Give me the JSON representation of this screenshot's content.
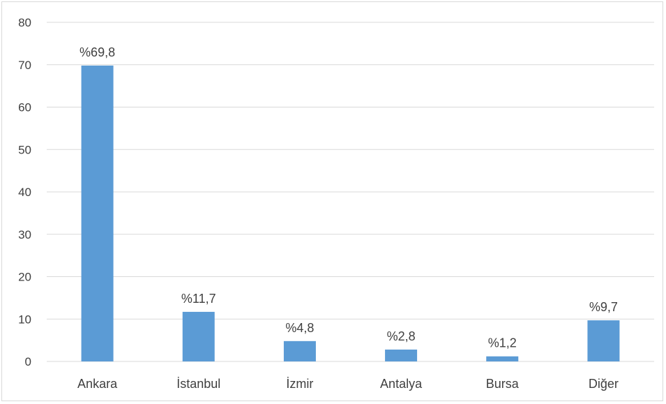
{
  "chart_data": {
    "type": "bar",
    "categories": [
      "Ankara",
      "İstanbul",
      "İzmir",
      "Antalya",
      "Bursa",
      "Diğer"
    ],
    "values": [
      69.8,
      11.7,
      4.8,
      2.8,
      1.2,
      9.7
    ],
    "data_labels": [
      "%69,8",
      "%11,7",
      "%4,8",
      "%2,8",
      "%1,2",
      "%9,7"
    ],
    "title": "",
    "xlabel": "",
    "ylabel": "",
    "ylim": [
      0,
      80
    ],
    "yticks": [
      "0",
      "10",
      "20",
      "30",
      "40",
      "50",
      "60",
      "70",
      "80"
    ],
    "grid": true,
    "legend": "none",
    "bar_color": "#5b9bd5",
    "grid_color": "#d9d9d9",
    "text_color": "#404040"
  }
}
